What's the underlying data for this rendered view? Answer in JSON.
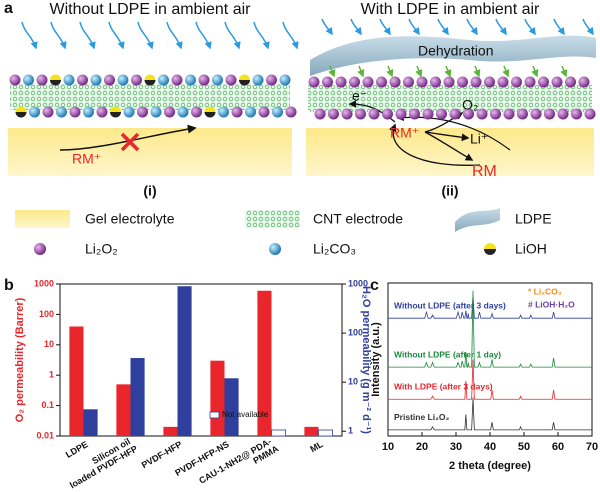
{
  "schematic": {
    "label": "a",
    "panels": [
      {
        "title": "Without LDPE in ambient air",
        "label": "(i)",
        "annotations": [
          "RM⁺"
        ]
      },
      {
        "title": "With LDPE in ambient air",
        "label": "(ii)",
        "annotations": [
          "Dehydration",
          "e⁻",
          "O₂",
          "Li⁺",
          "RM⁺",
          "RM"
        ]
      }
    ],
    "legend": [
      "Gel electrolyte",
      "CNT electrode",
      "LDPE",
      "Li₂O₂",
      "Li₂CO₃",
      "LiOH"
    ]
  },
  "chart_data": [
    {
      "type": "bar",
      "label": "b",
      "categories": [
        "LDPE",
        "Silicon oil loaded PVDF-HFP",
        "PVDF-HFP",
        "PVDF-HFP-NS",
        "CAU-1-NH2@ PDA- PMMA",
        "ML"
      ],
      "ylabel": "O₂ permeability (Barrer)",
      "y2label": "H₂O permeability (g m⁻² d⁻¹)",
      "log_scale": true,
      "ylim": [
        0.01,
        1000
      ],
      "yticks": [
        0.01,
        0.1,
        1,
        10,
        100,
        1000
      ],
      "y2lim": [
        0.8,
        1000
      ],
      "y2ticks": [
        1,
        10,
        100,
        1000
      ],
      "series": [
        {
          "color": "#e8262b",
          "values": [
            40,
            0.5,
            0.02,
            3,
            600,
            0.02
          ]
        },
        {
          "color": "#2e3f9e",
          "axis": "y2",
          "values": [
            2.8,
            31,
            900,
            12,
            null,
            null
          ]
        }
      ],
      "legend": {
        "label": "Not available"
      }
    },
    {
      "type": "line",
      "label": "c",
      "xlabel": "2 theta (degree)",
      "ylabel": "Intensity (a.u.)",
      "x": [
        10,
        20.8,
        21.3,
        21.8,
        22.6,
        23.1,
        23.6,
        30.1,
        30.6,
        31.1,
        31.5,
        31.8,
        32.3,
        32.6,
        32.9,
        33.2,
        33.4,
        33.6,
        33.8,
        34.6,
        35,
        35.4,
        36.5,
        36.9,
        37.3,
        40.2,
        40.6,
        41,
        48.6,
        49,
        49.4,
        51.6,
        52,
        52.4,
        58.3,
        58.7,
        59.1,
        70
      ],
      "xlim": [
        10,
        70
      ],
      "xticks": [
        10,
        20,
        30,
        40,
        50,
        60,
        70
      ],
      "ylim": [
        0,
        100
      ],
      "series": [
        {
          "name": "Without LDPE (after 3 days)",
          "color": "#2e3f9e",
          "values": [
            77,
            77,
            81,
            77,
            77,
            79,
            77,
            77,
            81,
            77,
            77,
            81,
            77,
            77,
            82,
            77,
            77,
            80,
            77,
            77,
            92,
            77,
            77,
            81,
            77,
            77,
            80,
            77,
            77,
            79,
            77,
            77,
            79,
            77,
            77,
            81,
            77,
            77
          ]
        },
        {
          "name": "Without LDPE (after 1 day)",
          "color": "#1a8a3a",
          "values": [
            45,
            45,
            48,
            45,
            45,
            48,
            45,
            45,
            48,
            45,
            45,
            49,
            45,
            45,
            55,
            45,
            45,
            48,
            45,
            45,
            95,
            45,
            45,
            48,
            45,
            45,
            50,
            45,
            45,
            47,
            45,
            45,
            47,
            45,
            45,
            51,
            45,
            45
          ]
        },
        {
          "name": "With LDPE (after 3 days)",
          "color": "#e8262b",
          "values": [
            24,
            24,
            24,
            24,
            24,
            26,
            24,
            24,
            24,
            24,
            24,
            24,
            24,
            24,
            36,
            24,
            24,
            24,
            24,
            24,
            50,
            24,
            24,
            24,
            24,
            24,
            30,
            24,
            24,
            26,
            24,
            24,
            24,
            24,
            24,
            30,
            24,
            24
          ]
        },
        {
          "name": "Pristine Li₂O₂",
          "color": "#333333",
          "values": [
            4,
            4,
            4,
            4,
            4,
            6,
            4,
            4,
            4,
            4,
            4,
            4,
            4,
            4,
            14,
            4,
            4,
            4,
            4,
            4,
            25,
            4,
            4,
            4,
            4,
            4,
            9,
            4,
            4,
            6,
            4,
            4,
            4,
            4,
            4,
            9,
            4,
            4
          ]
        }
      ],
      "annotations": [
        "* Li₂CO₃",
        "# LiOH·H₂O"
      ]
    }
  ]
}
